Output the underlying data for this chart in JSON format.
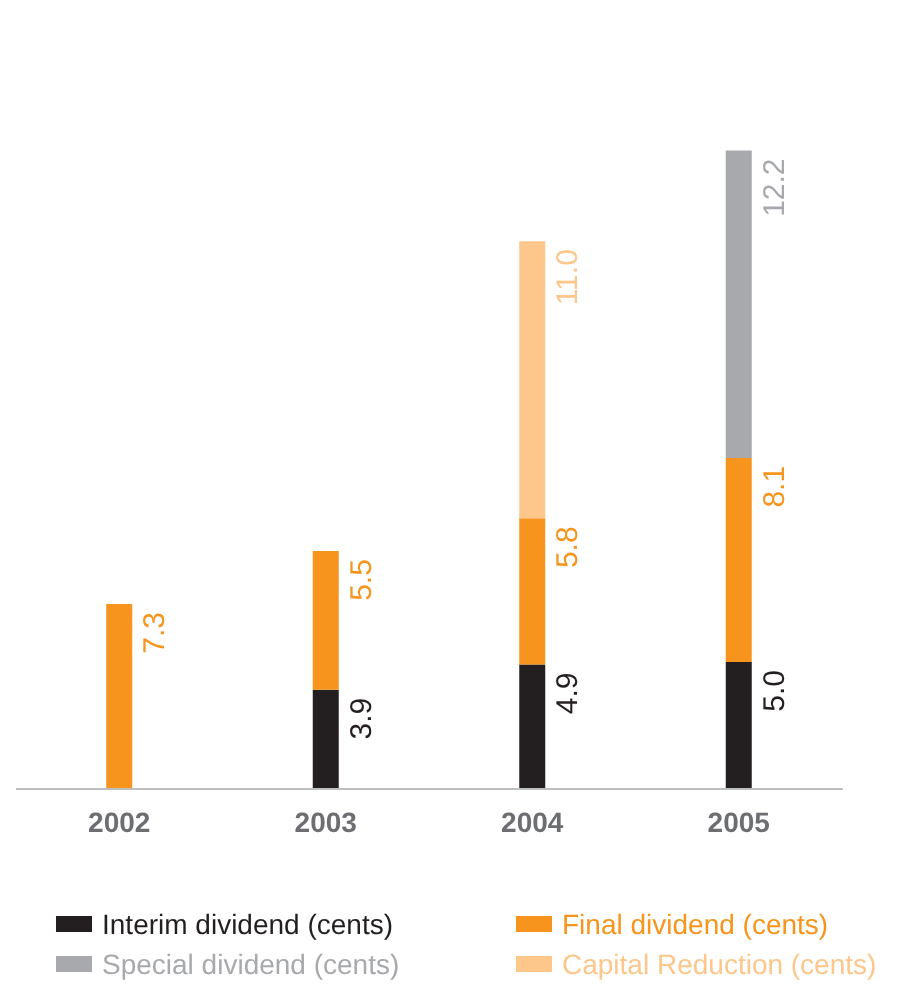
{
  "chart_data": {
    "type": "bar",
    "stacked": true,
    "legend": "bottom",
    "categories": [
      "2002",
      "2003",
      "2004",
      "2005"
    ],
    "series": [
      {
        "name": "Interim dividend (cents)",
        "color": "#231f20",
        "values": [
          null,
          3.9,
          4.9,
          5.0
        ],
        "value_labels": [
          null,
          "3.9",
          "4.9",
          "5.0"
        ]
      },
      {
        "name": "Final dividend (cents)",
        "color": "#f7941d",
        "values": [
          7.3,
          5.5,
          5.8,
          8.1
        ],
        "value_labels": [
          "7.3",
          "5.5",
          "5.8",
          "8.1"
        ]
      },
      {
        "name": "Special dividend (cents)",
        "color": "#a7a9ac",
        "values": [
          null,
          null,
          null,
          12.2
        ],
        "value_labels": [
          null,
          null,
          null,
          "12.2"
        ]
      },
      {
        "name": "Capital Reduction (cents)",
        "color": "#fdc68a",
        "values": [
          null,
          null,
          11.0,
          null
        ],
        "value_labels": [
          null,
          null,
          "11.0",
          null
        ]
      }
    ]
  }
}
